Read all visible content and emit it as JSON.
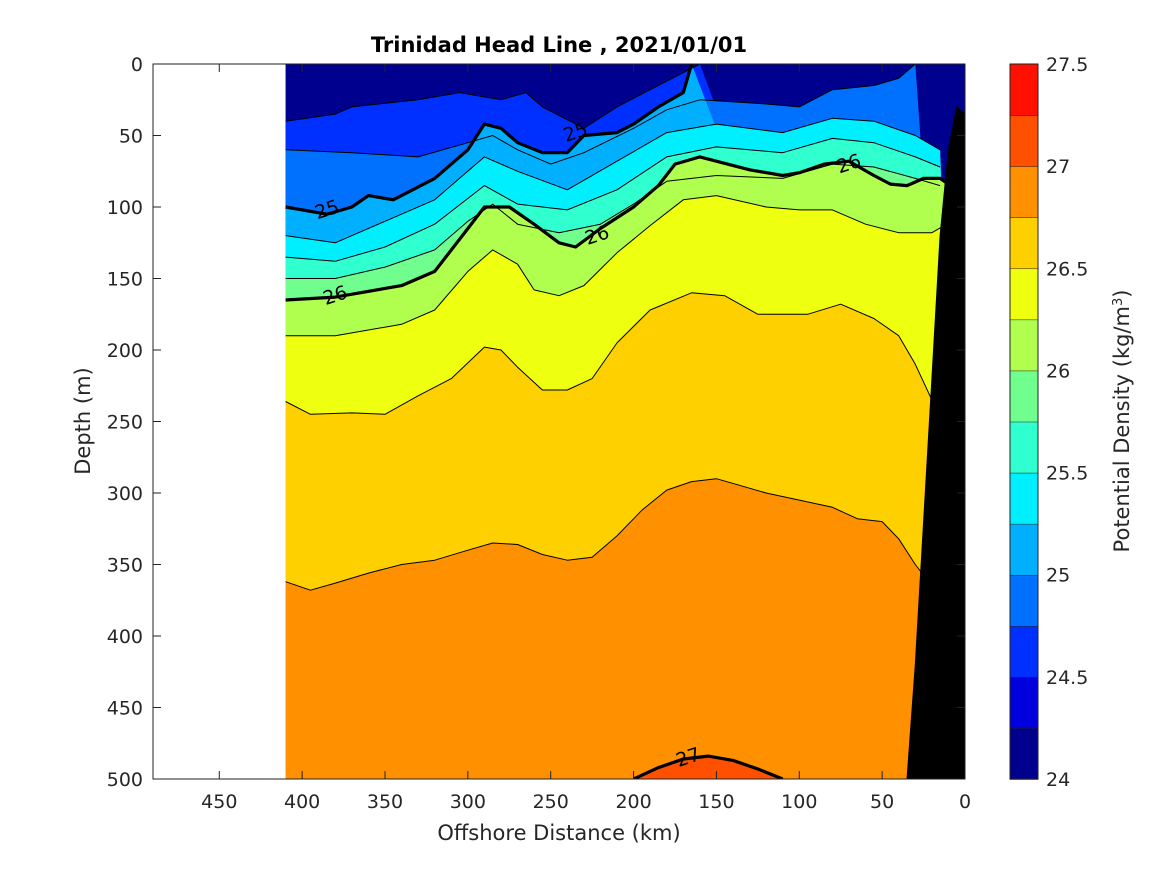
{
  "chart_data": {
    "type": "contour",
    "title": "Trinidad Head Line , 2021/01/01",
    "xlabel": "Offshore Distance (km)",
    "ylabel": "Depth (m)",
    "xlim": [
      490,
      0
    ],
    "ylim": [
      500,
      0
    ],
    "x_reversed": true,
    "y_reversed": true,
    "xticks": [
      450,
      400,
      350,
      300,
      250,
      200,
      150,
      100,
      50,
      0
    ],
    "yticks": [
      0,
      50,
      100,
      150,
      200,
      250,
      300,
      350,
      400,
      450,
      500
    ],
    "data_extent_x": [
      410,
      0
    ],
    "colorbar": {
      "label": "Potential Density (kg/m",
      "label_superscript": "3",
      "label_suffix": ")",
      "range": [
        24,
        27.5
      ],
      "ticks": [
        "24",
        "24.5",
        "25",
        "25.5",
        "26",
        "26.5",
        "27",
        "27.5"
      ],
      "tick_values": [
        24,
        24.5,
        25,
        25.5,
        26,
        26.5,
        27,
        27.5
      ],
      "levels": [
        24,
        24.25,
        24.5,
        24.75,
        25,
        25.25,
        25.5,
        25.75,
        26,
        26.25,
        26.5,
        26.75,
        27,
        27.25,
        27.5
      ],
      "colors": [
        "#00008f",
        "#0000df",
        "#0030ff",
        "#0070ff",
        "#00b0ff",
        "#00efff",
        "#30ffcf",
        "#70ff8f",
        "#b0ff4f",
        "#efff10",
        "#ffd000",
        "#ff9000",
        "#ff5000",
        "#ff1000",
        "#cf0000"
      ]
    },
    "contours": [
      {
        "level": 24.5,
        "points": [
          [
            410,
            40
          ],
          [
            380,
            35
          ],
          [
            370,
            30
          ],
          [
            330,
            25
          ],
          [
            305,
            20
          ],
          [
            280,
            25
          ],
          [
            265,
            20
          ],
          [
            255,
            30
          ],
          [
            230,
            45
          ],
          [
            210,
            30
          ],
          [
            180,
            12
          ],
          [
            160,
            0
          ]
        ]
      },
      {
        "level": 24.75,
        "points": [
          [
            410,
            60
          ],
          [
            370,
            62
          ],
          [
            330,
            65
          ],
          [
            300,
            55
          ],
          [
            285,
            50
          ],
          [
            270,
            60
          ],
          [
            250,
            70
          ],
          [
            230,
            62
          ],
          [
            200,
            45
          ],
          [
            180,
            32
          ],
          [
            160,
            25
          ],
          [
            120,
            28
          ],
          [
            100,
            30
          ],
          [
            80,
            18
          ],
          [
            55,
            15
          ],
          [
            40,
            10
          ],
          [
            30,
            0
          ]
        ]
      },
      {
        "level": 25,
        "labels": [
          [
            385,
            102
          ],
          [
            235,
            48
          ]
        ],
        "points": [
          [
            410,
            100
          ],
          [
            385,
            105
          ],
          [
            370,
            100
          ],
          [
            360,
            92
          ],
          [
            345,
            95
          ],
          [
            320,
            80
          ],
          [
            300,
            60
          ],
          [
            290,
            42
          ],
          [
            280,
            45
          ],
          [
            270,
            55
          ],
          [
            255,
            62
          ],
          [
            240,
            62
          ],
          [
            230,
            50
          ],
          [
            210,
            48
          ],
          [
            200,
            42
          ],
          [
            185,
            30
          ],
          [
            170,
            20
          ],
          [
            165,
            0
          ]
        ]
      },
      {
        "level": 25.25,
        "points": [
          [
            410,
            120
          ],
          [
            380,
            125
          ],
          [
            350,
            110
          ],
          [
            320,
            95
          ],
          [
            290,
            65
          ],
          [
            270,
            75
          ],
          [
            240,
            88
          ],
          [
            210,
            68
          ],
          [
            180,
            48
          ],
          [
            150,
            42
          ],
          [
            110,
            48
          ],
          [
            80,
            38
          ],
          [
            55,
            40
          ],
          [
            30,
            50
          ],
          [
            15,
            60
          ]
        ]
      },
      {
        "level": 25.5,
        "points": [
          [
            410,
            135
          ],
          [
            380,
            138
          ],
          [
            350,
            128
          ],
          [
            320,
            112
          ],
          [
            290,
            85
          ],
          [
            270,
            98
          ],
          [
            240,
            102
          ],
          [
            210,
            88
          ],
          [
            180,
            65
          ],
          [
            150,
            58
          ],
          [
            110,
            62
          ],
          [
            80,
            52
          ],
          [
            55,
            55
          ],
          [
            30,
            65
          ],
          [
            15,
            72
          ]
        ]
      },
      {
        "level": 25.75,
        "points": [
          [
            410,
            150
          ],
          [
            380,
            150
          ],
          [
            350,
            142
          ],
          [
            320,
            130
          ],
          [
            300,
            110
          ],
          [
            285,
            98
          ],
          [
            270,
            112
          ],
          [
            245,
            118
          ],
          [
            220,
            112
          ],
          [
            200,
            98
          ],
          [
            180,
            82
          ],
          [
            150,
            78
          ],
          [
            110,
            80
          ],
          [
            80,
            70
          ],
          [
            55,
            72
          ],
          [
            30,
            80
          ],
          [
            15,
            85
          ]
        ]
      },
      {
        "level": 26,
        "labels": [
          [
            380,
            162
          ],
          [
            222,
            120
          ],
          [
            70,
            70
          ]
        ],
        "points": [
          [
            410,
            165
          ],
          [
            380,
            163
          ],
          [
            340,
            155
          ],
          [
            320,
            145
          ],
          [
            300,
            115
          ],
          [
            290,
            100
          ],
          [
            275,
            100
          ],
          [
            260,
            112
          ],
          [
            245,
            125
          ],
          [
            235,
            128
          ],
          [
            220,
            115
          ],
          [
            200,
            100
          ],
          [
            185,
            85
          ],
          [
            175,
            70
          ],
          [
            160,
            65
          ],
          [
            130,
            74
          ],
          [
            110,
            78
          ],
          [
            100,
            76
          ],
          [
            85,
            70
          ],
          [
            70,
            68
          ],
          [
            55,
            78
          ],
          [
            45,
            84
          ],
          [
            35,
            85
          ],
          [
            25,
            80
          ],
          [
            15,
            80
          ],
          [
            5,
            88
          ]
        ]
      },
      {
        "level": 26.25,
        "points": [
          [
            410,
            190
          ],
          [
            380,
            190
          ],
          [
            340,
            182
          ],
          [
            320,
            172
          ],
          [
            300,
            145
          ],
          [
            285,
            130
          ],
          [
            270,
            140
          ],
          [
            260,
            158
          ],
          [
            245,
            162
          ],
          [
            230,
            155
          ],
          [
            210,
            132
          ],
          [
            190,
            113
          ],
          [
            170,
            95
          ],
          [
            150,
            92
          ],
          [
            120,
            100
          ],
          [
            100,
            102
          ],
          [
            80,
            102
          ],
          [
            60,
            112
          ],
          [
            40,
            118
          ],
          [
            20,
            118
          ],
          [
            5,
            108
          ]
        ]
      },
      {
        "level": 26.5,
        "points": [
          [
            410,
            236
          ],
          [
            395,
            245
          ],
          [
            370,
            244
          ],
          [
            350,
            245
          ],
          [
            330,
            232
          ],
          [
            310,
            220
          ],
          [
            290,
            198
          ],
          [
            280,
            200
          ],
          [
            270,
            212
          ],
          [
            255,
            228
          ],
          [
            240,
            228
          ],
          [
            225,
            220
          ],
          [
            210,
            195
          ],
          [
            190,
            172
          ],
          [
            165,
            160
          ],
          [
            145,
            162
          ],
          [
            125,
            175
          ],
          [
            95,
            175
          ],
          [
            75,
            168
          ],
          [
            55,
            178
          ],
          [
            40,
            190
          ],
          [
            30,
            210
          ],
          [
            20,
            235
          ]
        ]
      },
      {
        "level": 26.75,
        "points": [
          [
            410,
            362
          ],
          [
            395,
            368
          ],
          [
            380,
            363
          ],
          [
            360,
            356
          ],
          [
            340,
            350
          ],
          [
            320,
            347
          ],
          [
            300,
            340
          ],
          [
            285,
            335
          ],
          [
            270,
            336
          ],
          [
            255,
            343
          ],
          [
            240,
            347
          ],
          [
            225,
            345
          ],
          [
            210,
            330
          ],
          [
            195,
            312
          ],
          [
            180,
            298
          ],
          [
            165,
            292
          ],
          [
            150,
            290
          ],
          [
            135,
            295
          ],
          [
            120,
            300
          ],
          [
            100,
            305
          ],
          [
            80,
            310
          ],
          [
            65,
            318
          ],
          [
            50,
            320
          ],
          [
            40,
            332
          ],
          [
            30,
            350
          ],
          [
            20,
            365
          ]
        ]
      },
      {
        "level": 27,
        "labels": [
          [
            167,
            485
          ]
        ],
        "points": [
          [
            200,
            500
          ],
          [
            185,
            492
          ],
          [
            170,
            486
          ],
          [
            155,
            484
          ],
          [
            140,
            487
          ],
          [
            125,
            493
          ],
          [
            110,
            500
          ]
        ]
      }
    ],
    "bathymetry": {
      "color": "#000000",
      "points": [
        [
          0,
          35
        ],
        [
          5,
          30
        ],
        [
          10,
          60
        ],
        [
          15,
          120
        ],
        [
          20,
          220
        ],
        [
          25,
          320
        ],
        [
          30,
          420
        ],
        [
          35,
          500
        ],
        [
          0,
          500
        ]
      ]
    }
  }
}
